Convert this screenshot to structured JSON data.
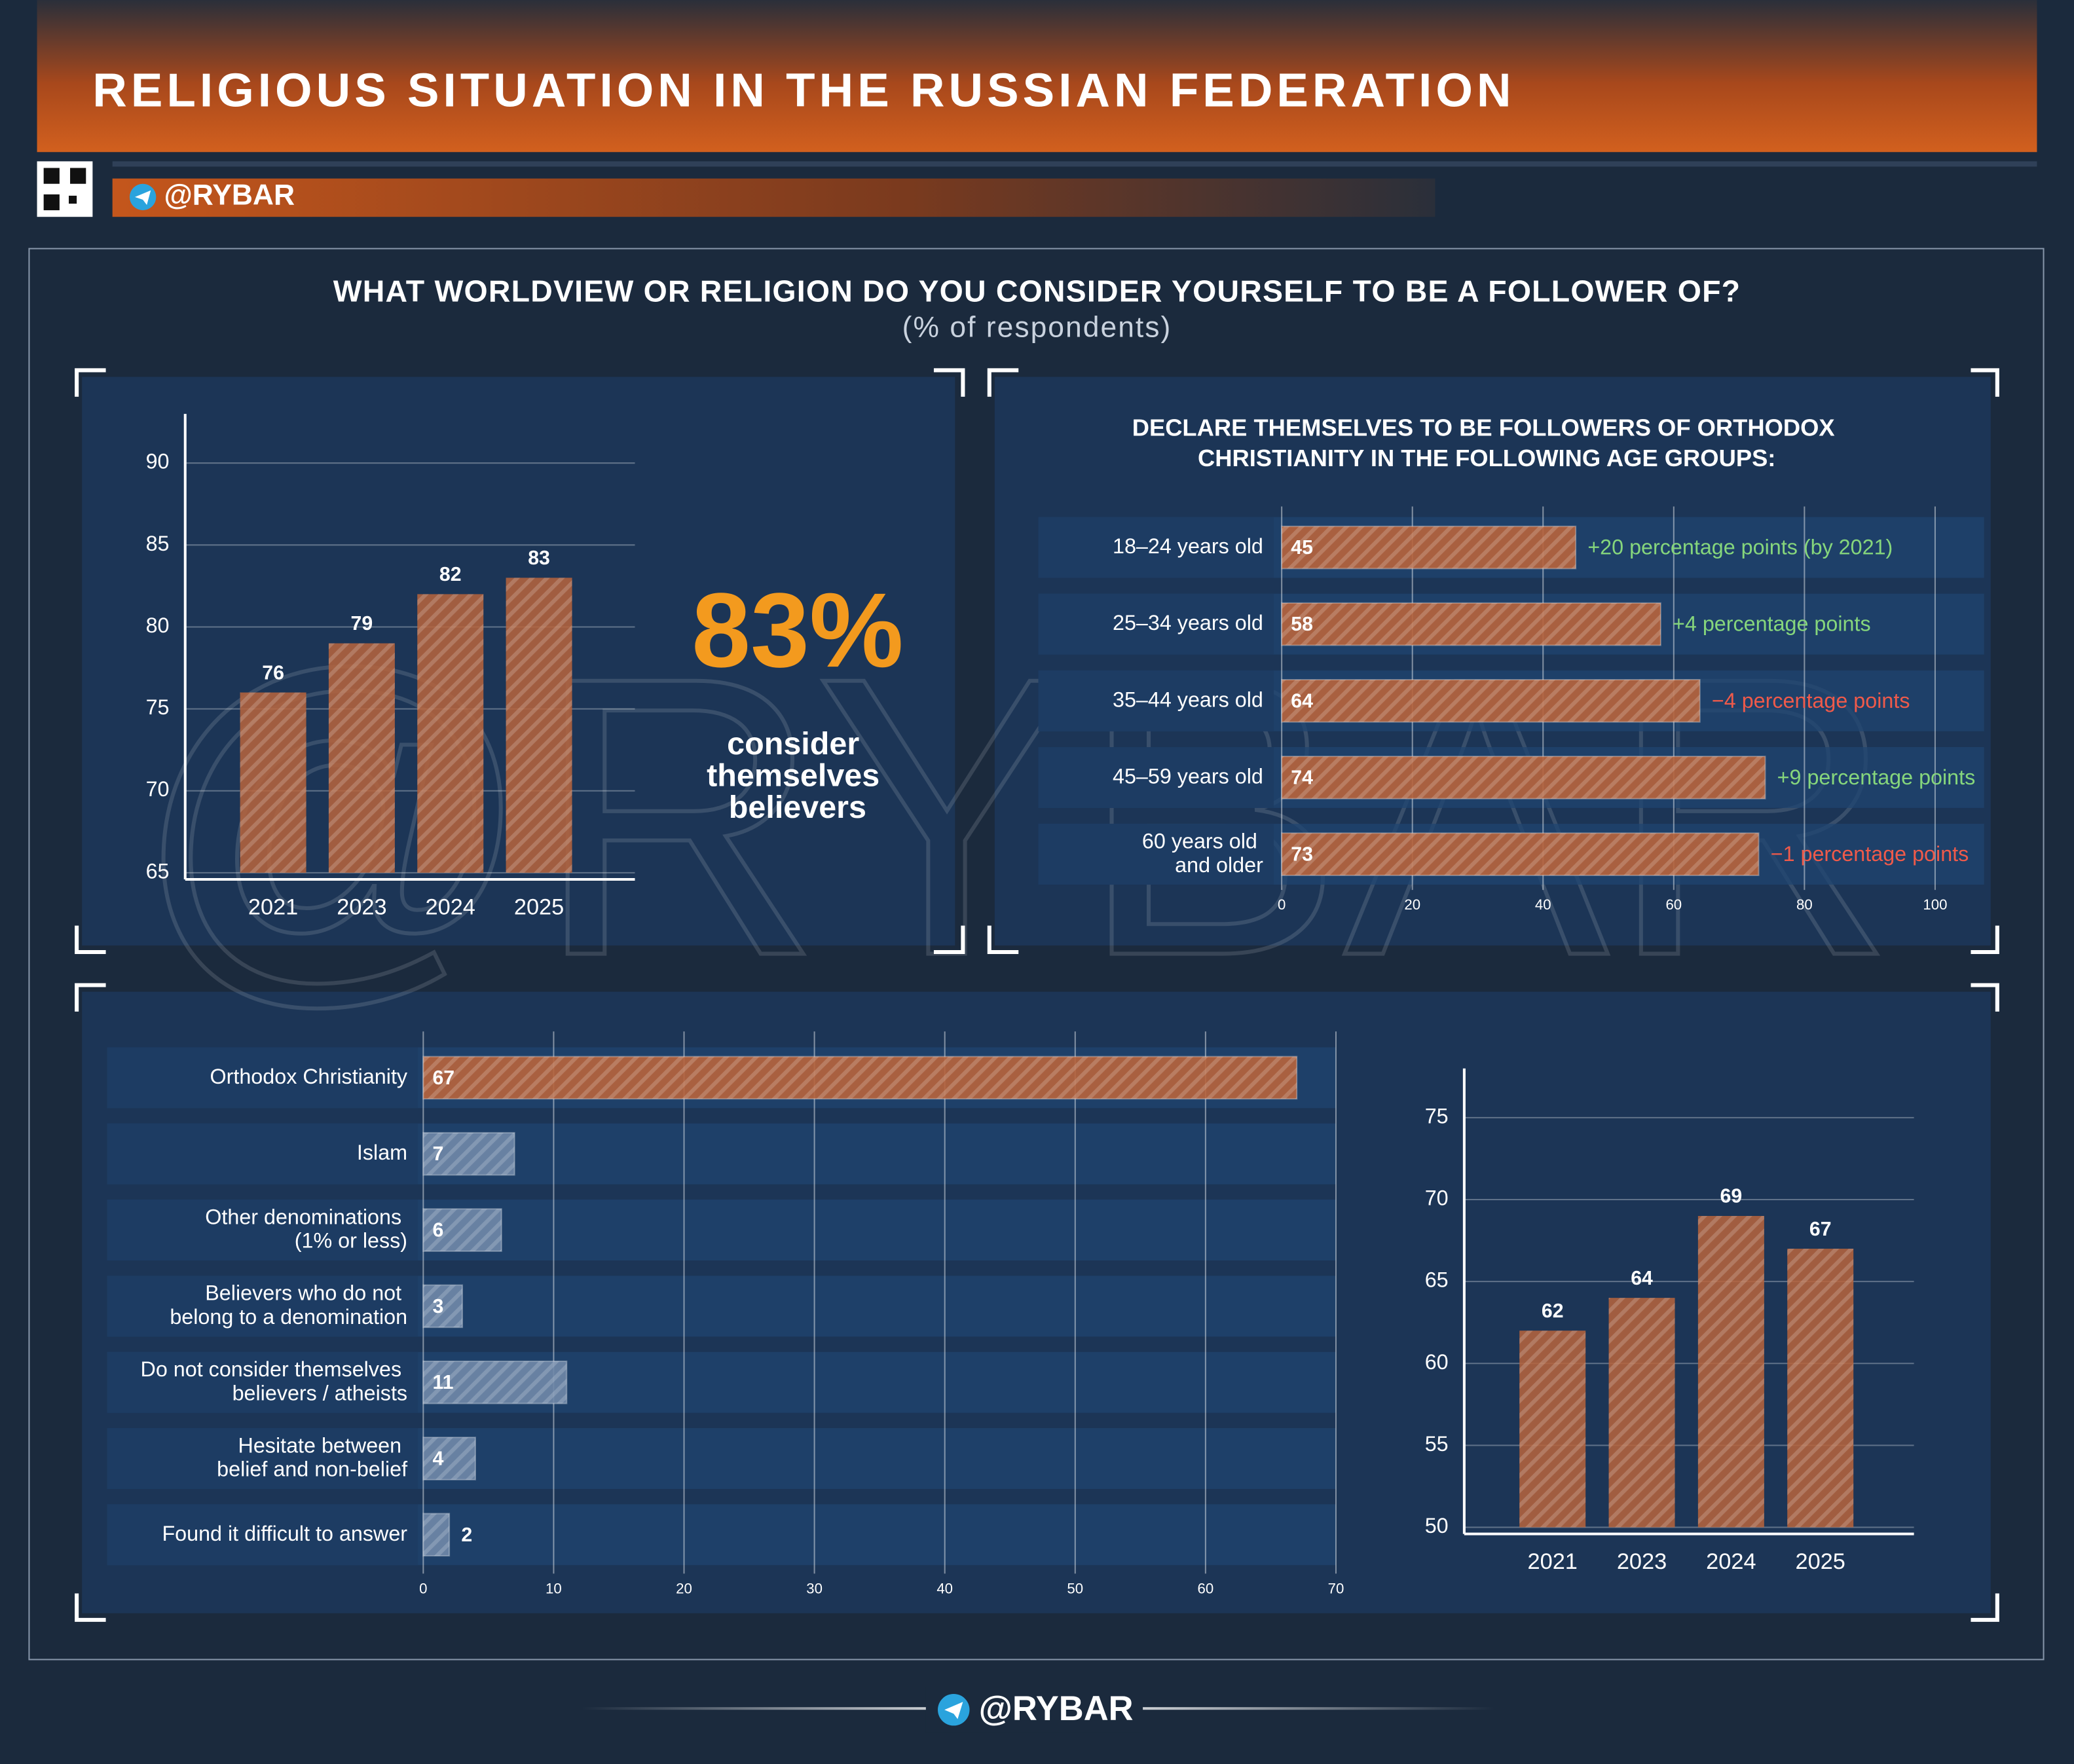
{
  "header": {
    "title": "RELIGIOUS SITUATION IN THE RUSSIAN FEDERATION",
    "handle": "@RYBAR",
    "question": "WHAT WORLDVIEW OR RELIGION DO YOU CONSIDER YOURSELF TO BE A FOLLOWER OF?",
    "subtitle": "(% of respondents)",
    "highlight": {
      "value": 83,
      "label": "83%",
      "caption": "consider themselves believers"
    }
  },
  "chart_data": [
    {
      "type": "bar",
      "categories": [
        "2021",
        "2023",
        "2024",
        "2025"
      ],
      "values": [
        76,
        79,
        82,
        83
      ],
      "color": "#b8643c",
      "ylim": [
        65,
        93
      ],
      "yticks": [
        65,
        70,
        75,
        80,
        85,
        90
      ],
      "grid": true
    },
    {
      "type": "barh",
      "title": "DECLARE THEMSELVES TO BE FOLLOWERS OF ORTHODOX CHRISTIANITY IN THE FOLLOWING AGE GROUPS:",
      "categories": [
        "18–24 years old",
        "25–34 years old",
        "35–44 years old",
        "45–59 years old",
        "60 years old and older"
      ],
      "values": [
        45,
        58,
        64,
        74,
        73
      ],
      "color": "#b8643c",
      "annotations": [
        {
          "text": "+20 percentage points (by 2021)",
          "color": "#86d67c"
        },
        {
          "text": "+4 percentage points",
          "color": "#86d67c"
        },
        {
          "text": "−4 percentage points",
          "color": "#ef5a4a"
        },
        {
          "text": "+9 percentage points",
          "color": "#86d67c"
        },
        {
          "text": "−1 percentage points",
          "color": "#ef5a4a"
        }
      ],
      "xlim": [
        0,
        100
      ],
      "xticks": [
        0,
        20,
        40,
        60,
        80,
        100
      ],
      "grid": true
    },
    {
      "type": "barh",
      "categories": [
        "Orthodox Christianity",
        "Islam",
        "Other denominations (1% or less)",
        "Believers who do not belong to a denomination",
        "Do not consider themselves believers / atheists",
        "Hesitate between belief and non-belief",
        "Found it difficult to answer"
      ],
      "values": [
        67,
        7,
        6,
        3,
        11,
        4,
        2
      ],
      "colors": [
        "#b8643c",
        "#7088a8",
        "#7088a8",
        "#7088a8",
        "#7088a8",
        "#7088a8",
        "#7088a8"
      ],
      "xlim": [
        0,
        70
      ],
      "xticks": [
        0,
        10,
        20,
        30,
        40,
        50,
        60,
        70
      ],
      "grid": true
    },
    {
      "type": "bar",
      "categories": [
        "2021",
        "2023",
        "2024",
        "2025"
      ],
      "values": [
        62,
        64,
        69,
        67
      ],
      "color": "#b8643c",
      "ylim": [
        50,
        78
      ],
      "yticks": [
        50,
        55,
        60,
        65,
        70,
        75
      ],
      "grid": true
    }
  ]
}
